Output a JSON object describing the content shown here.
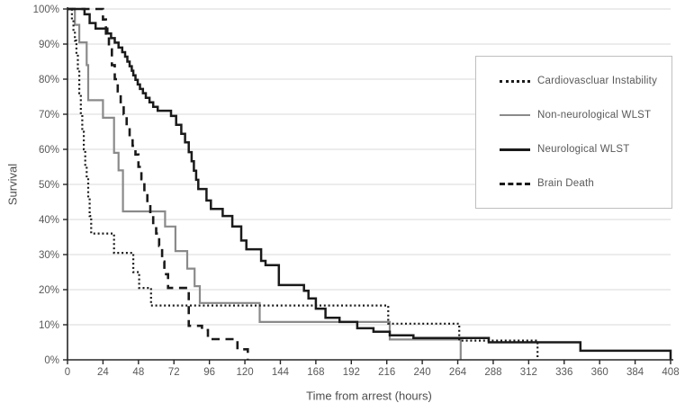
{
  "chart_data": {
    "type": "line",
    "subtype": "kaplan-meier-step",
    "title": "",
    "xlabel": "Time from arrest (hours)",
    "ylabel": "Survival",
    "xlim": [
      0,
      408
    ],
    "ylim": [
      0,
      100
    ],
    "x_ticks": [
      0,
      24,
      48,
      72,
      96,
      120,
      144,
      168,
      192,
      216,
      240,
      264,
      288,
      312,
      336,
      360,
      384,
      408
    ],
    "y_ticks": [
      0,
      10,
      20,
      30,
      40,
      50,
      60,
      70,
      80,
      90,
      100
    ],
    "y_tick_suffix": "%",
    "grid": "horizontal-only",
    "legend_position": "top-right",
    "draw_order": [
      1,
      2,
      3,
      0
    ],
    "series": [
      {
        "name": "Cardiovascluar Instability",
        "style": "dotted",
        "color": "#1a1a1a",
        "points": [
          [
            0,
            100
          ],
          [
            3,
            97
          ],
          [
            4,
            93.5
          ],
          [
            5,
            91
          ],
          [
            6,
            87
          ],
          [
            7,
            83
          ],
          [
            8,
            76
          ],
          [
            9,
            70
          ],
          [
            10,
            65
          ],
          [
            11,
            60
          ],
          [
            12,
            55
          ],
          [
            13,
            52
          ],
          [
            14,
            46
          ],
          [
            15,
            41
          ],
          [
            16,
            36
          ],
          [
            31.5,
            30.5
          ],
          [
            44.5,
            25
          ],
          [
            48.5,
            20.5
          ],
          [
            56.5,
            15.5
          ],
          [
            217,
            10.3
          ],
          [
            265,
            5.5
          ],
          [
            318,
            0
          ]
        ]
      },
      {
        "name": "Non-neurological WLST",
        "style": "solid-gray",
        "color": "#8a8a8a",
        "points": [
          [
            0,
            100
          ],
          [
            5,
            95.5
          ],
          [
            8,
            90.5
          ],
          [
            13,
            84
          ],
          [
            14,
            74
          ],
          [
            24,
            69
          ],
          [
            31.5,
            59
          ],
          [
            34.5,
            54
          ],
          [
            37.5,
            42.3
          ],
          [
            66,
            38
          ],
          [
            73,
            31
          ],
          [
            81,
            26
          ],
          [
            86,
            21
          ],
          [
            89.5,
            16.2
          ],
          [
            130,
            10.8
          ],
          [
            218,
            5.8
          ],
          [
            266,
            0
          ]
        ]
      },
      {
        "name": "Neurological WLST",
        "style": "solid-black",
        "color": "#1a1a1a",
        "points": [
          [
            0,
            100
          ],
          [
            11.5,
            98.5
          ],
          [
            15,
            96
          ],
          [
            19,
            94.4
          ],
          [
            27,
            93
          ],
          [
            29.5,
            91.7
          ],
          [
            32,
            90.4
          ],
          [
            34.5,
            89
          ],
          [
            37,
            87.7
          ],
          [
            39,
            86.4
          ],
          [
            40.5,
            85
          ],
          [
            42,
            83.7
          ],
          [
            43.5,
            82.4
          ],
          [
            44.5,
            81.1
          ],
          [
            46,
            79.8
          ],
          [
            47.5,
            78.5
          ],
          [
            49,
            77.2
          ],
          [
            51,
            76
          ],
          [
            53,
            74.7
          ],
          [
            55.5,
            73.4
          ],
          [
            58,
            72.1
          ],
          [
            61,
            71
          ],
          [
            70,
            69.5
          ],
          [
            73.5,
            67
          ],
          [
            77,
            64.4
          ],
          [
            79.5,
            62
          ],
          [
            82,
            59.2
          ],
          [
            84,
            56.6
          ],
          [
            85.5,
            53.9
          ],
          [
            87,
            51.3
          ],
          [
            88.5,
            48.7
          ],
          [
            94,
            45.4
          ],
          [
            97,
            43
          ],
          [
            105,
            41
          ],
          [
            111.5,
            38
          ],
          [
            117.5,
            34
          ],
          [
            121,
            31.5
          ],
          [
            131,
            28.2
          ],
          [
            134,
            27
          ],
          [
            143,
            21.3
          ],
          [
            160,
            19.7
          ],
          [
            163,
            17.5
          ],
          [
            168,
            14.6
          ],
          [
            174.5,
            12
          ],
          [
            184,
            10.8
          ],
          [
            196,
            9
          ],
          [
            207,
            8
          ],
          [
            218,
            7
          ],
          [
            234,
            6.2
          ],
          [
            285,
            5
          ],
          [
            347,
            2.6
          ],
          [
            408,
            0
          ]
        ]
      },
      {
        "name": "Brain Death",
        "style": "dashed",
        "color": "#1a1a1a",
        "points": [
          [
            0,
            100
          ],
          [
            24,
            97
          ],
          [
            26,
            93
          ],
          [
            28,
            88.5
          ],
          [
            30,
            84
          ],
          [
            32,
            80
          ],
          [
            34,
            76.5
          ],
          [
            36,
            73
          ],
          [
            38,
            70
          ],
          [
            40,
            66.5
          ],
          [
            42,
            63
          ],
          [
            44,
            61
          ],
          [
            46,
            58.5
          ],
          [
            48,
            55
          ],
          [
            50,
            51.5
          ],
          [
            52,
            48
          ],
          [
            54,
            44.5
          ],
          [
            56,
            41
          ],
          [
            58,
            38.5
          ],
          [
            60,
            36
          ],
          [
            62,
            32.5
          ],
          [
            64,
            28
          ],
          [
            65.5,
            24.4
          ],
          [
            68,
            20.5
          ],
          [
            82,
            9.7
          ],
          [
            91,
            8.5
          ],
          [
            95,
            5.9
          ],
          [
            115,
            3
          ],
          [
            122,
            0
          ]
        ]
      }
    ]
  },
  "colors": {
    "background": "#ffffff",
    "gridline": "#d9d9d9",
    "axis": "#262626",
    "tick_label": "#595959",
    "axis_title": "#4d4d4d",
    "legend_border": "#bfbfbf",
    "series_black": "#1a1a1a",
    "series_gray": "#8a8a8a"
  }
}
